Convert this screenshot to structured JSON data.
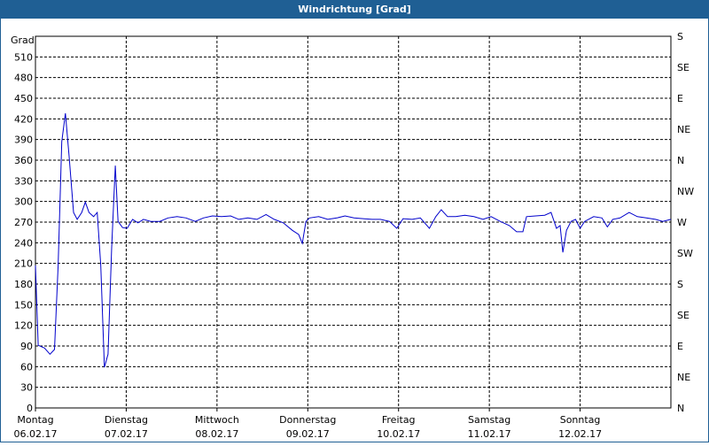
{
  "chart_data": {
    "type": "line",
    "title": "Windrichtung [Grad]",
    "y_label": "Grad",
    "xlim": [
      0,
      7
    ],
    "xticks": [
      0,
      1,
      2,
      3,
      4,
      5,
      6
    ],
    "xtick_labels": [
      {
        "day": "Montag",
        "date": "06.02.17"
      },
      {
        "day": "Dienstag",
        "date": "07.02.17"
      },
      {
        "day": "Mittwoch",
        "date": "08.02.17"
      },
      {
        "day": "Donnerstag",
        "date": "09.02.17"
      },
      {
        "day": "Freitag",
        "date": "10.02.17"
      },
      {
        "day": "Samstag",
        "date": "11.02.17"
      },
      {
        "day": "Sonntag",
        "date": "12.02.17"
      }
    ],
    "ylim": [
      0,
      540
    ],
    "yticks": [
      0,
      30,
      60,
      90,
      120,
      150,
      180,
      210,
      240,
      270,
      300,
      330,
      360,
      390,
      420,
      450,
      480,
      510
    ],
    "y2lim": [
      0,
      540
    ],
    "y2ticks": [
      {
        "value": 0,
        "label": "N"
      },
      {
        "value": 45,
        "label": "NE"
      },
      {
        "value": 90,
        "label": "E"
      },
      {
        "value": 135,
        "label": "SE"
      },
      {
        "value": 180,
        "label": "S"
      },
      {
        "value": 225,
        "label": "SW"
      },
      {
        "value": 270,
        "label": "W"
      },
      {
        "value": 315,
        "label": "NW"
      },
      {
        "value": 360,
        "label": "N"
      },
      {
        "value": 405,
        "label": "NE"
      },
      {
        "value": 450,
        "label": "E"
      },
      {
        "value": 495,
        "label": "SE"
      },
      {
        "value": 540,
        "label": "S"
      }
    ],
    "grid": true,
    "x": [
      0,
      0.03,
      0.1,
      0.16,
      0.21,
      0.25,
      0.29,
      0.33,
      0.37,
      0.42,
      0.46,
      0.51,
      0.55,
      0.59,
      0.64,
      0.68,
      0.72,
      0.76,
      0.8,
      0.84,
      0.88,
      0.91,
      0.96,
      1.01,
      1.07,
      1.13,
      1.19,
      1.27,
      1.37,
      1.46,
      1.56,
      1.66,
      1.76,
      1.85,
      1.95,
      2.05,
      2.15,
      2.24,
      2.34,
      2.44,
      2.54,
      2.63,
      2.73,
      2.83,
      2.9,
      2.94,
      2.98,
      3.02,
      3.12,
      3.22,
      3.32,
      3.41,
      3.51,
      3.61,
      3.71,
      3.8,
      3.9,
      3.98,
      4.05,
      4.15,
      4.24,
      4.34,
      4.41,
      4.47,
      4.54,
      4.63,
      4.73,
      4.83,
      4.93,
      5.02,
      5.12,
      5.22,
      5.3,
      5.37,
      5.41,
      5.51,
      5.61,
      5.68,
      5.74,
      5.78,
      5.81,
      5.85,
      5.9,
      5.95,
      6,
      6.05,
      6.15,
      6.24,
      6.3,
      6.36,
      6.44,
      6.54,
      6.63,
      6.73,
      6.83,
      6.91,
      7
    ],
    "series": [
      {
        "color": "#0000cc",
        "values": [
          207,
          91,
          87,
          78,
          85,
          207,
          387,
          428,
          367,
          284,
          274,
          284,
          299,
          284,
          278,
          284,
          207,
          59,
          78,
          233,
          352,
          271,
          262,
          261,
          274,
          269,
          274,
          271,
          271,
          276,
          278,
          276,
          271,
          276,
          279,
          278,
          279,
          274,
          276,
          274,
          281,
          274,
          269,
          258,
          252,
          239,
          271,
          276,
          278,
          274,
          276,
          279,
          276,
          275,
          274,
          274,
          271,
          261,
          275,
          274,
          276,
          261,
          278,
          288,
          278,
          278,
          280,
          278,
          274,
          278,
          271,
          265,
          256,
          256,
          278,
          279,
          280,
          284,
          261,
          265,
          226,
          258,
          271,
          274,
          261,
          271,
          278,
          276,
          263,
          274,
          276,
          284,
          278,
          276,
          274,
          271,
          274
        ]
      }
    ]
  }
}
